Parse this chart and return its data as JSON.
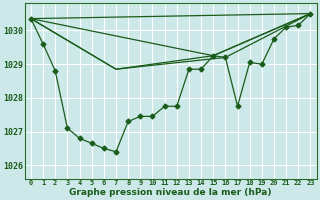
{
  "title": "Graphe pression niveau de la mer (hPa)",
  "bg_color": "#cce8e8",
  "grid_color": "#ffffff",
  "line_color": "#1a5c1a",
  "xlim": [
    -0.5,
    23.5
  ],
  "ylim": [
    1025.6,
    1030.8
  ],
  "yticks": [
    1026,
    1027,
    1028,
    1029,
    1030
  ],
  "xticks": [
    0,
    1,
    2,
    3,
    4,
    5,
    6,
    7,
    8,
    9,
    10,
    11,
    12,
    13,
    14,
    15,
    16,
    17,
    18,
    19,
    20,
    21,
    22,
    23
  ],
  "main_x": [
    0,
    1,
    2,
    3,
    4,
    5,
    6,
    7,
    8,
    9,
    10,
    11,
    12,
    13,
    14,
    15,
    16,
    17,
    18,
    19,
    20,
    21,
    22,
    23
  ],
  "main_y": [
    1030.35,
    1029.6,
    1028.8,
    1027.1,
    1026.8,
    1026.65,
    1026.5,
    1026.4,
    1027.3,
    1027.45,
    1027.45,
    1027.75,
    1027.75,
    1028.85,
    1028.85,
    1029.25,
    1029.2,
    1027.75,
    1029.05,
    1029.0,
    1029.75,
    1030.1,
    1030.15,
    1030.5
  ],
  "trend1_x": [
    0,
    23
  ],
  "trend1_y": [
    1030.35,
    1030.5
  ],
  "trend2_x": [
    0,
    15,
    23
  ],
  "trend2_y": [
    1030.35,
    1029.25,
    1030.5
  ],
  "trend3_x": [
    0,
    7,
    15,
    23
  ],
  "trend3_y": [
    1030.35,
    1028.85,
    1029.25,
    1030.5
  ],
  "trend4_x": [
    0,
    7,
    16,
    23
  ],
  "trend4_y": [
    1030.35,
    1028.85,
    1029.2,
    1030.5
  ]
}
